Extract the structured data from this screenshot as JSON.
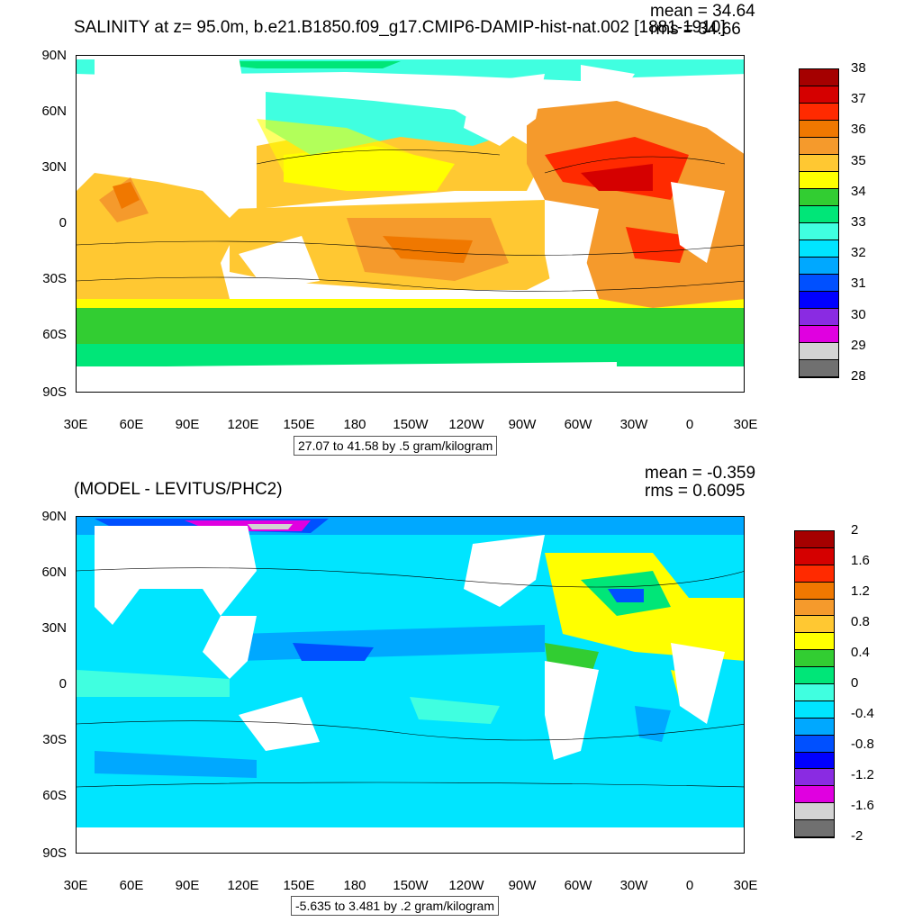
{
  "panels": [
    {
      "title": "SALINITY at z=  95.0m, b.e21.B1850.f09_g17.CMIP6-DAMIP-hist-nat.002 [1881-1910]",
      "mean_text": "mean = 34.64",
      "rms_text": "rms = 34.66",
      "range_text": "27.07 to 41.58 by .5 gram/kilogram",
      "colorbar_labels": [
        "38",
        "37",
        "36",
        "35",
        "34",
        "33",
        "32",
        "31",
        "30",
        "29",
        "28"
      ],
      "colorbar_colors": [
        "#a50000",
        "#d50000",
        "#ff2a00",
        "#f07800",
        "#f59a2c",
        "#ffc832",
        "#ffff00",
        "#32cd32",
        "#00e678",
        "#40ffe0",
        "#00e5ff",
        "#00a8ff",
        "#0050ff",
        "#0000ff",
        "#8a2be2",
        "#e000e0",
        "#d3d3d3",
        "#707070"
      ]
    },
    {
      "title": "(MODEL - LEVITUS/PHC2)",
      "mean_text": "mean = -0.359",
      "rms_text": "rms = 0.6095",
      "range_text": "-5.635 to 3.481 by .2 gram/kilogram",
      "colorbar_labels": [
        "2",
        "1.6",
        "1.2",
        "0.8",
        "0.4",
        "0",
        "-0.4",
        "-0.8",
        "-1.2",
        "-1.6",
        "-2"
      ],
      "colorbar_colors": [
        "#a50000",
        "#d50000",
        "#ff2a00",
        "#f07800",
        "#f59a2c",
        "#ffc832",
        "#ffff00",
        "#32cd32",
        "#00e678",
        "#40ffe0",
        "#00e5ff",
        "#00a8ff",
        "#0050ff",
        "#0000ff",
        "#8a2be2",
        "#e000e0",
        "#d3d3d3",
        "#707070"
      ]
    }
  ],
  "lat_labels": [
    "90N",
    "60N",
    "30N",
    "0",
    "30S",
    "60S",
    "90S"
  ],
  "lon_labels": [
    "30E",
    "60E",
    "90E",
    "120E",
    "150E",
    "180",
    "150W",
    "120W",
    "90W",
    "60W",
    "30W",
    "0",
    "30E"
  ]
}
